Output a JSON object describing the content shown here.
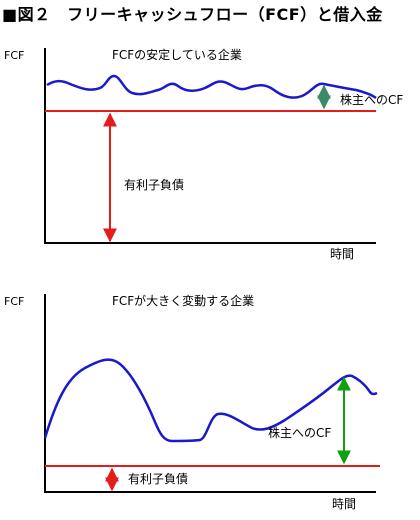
{
  "figure": {
    "title": "■図２　フリーキャッシュフロー（FCF）と借入金"
  },
  "panel_top": {
    "y_axis_label": "FCF",
    "caption": "FCFの安定している企業",
    "x_axis_label": "時間",
    "arrow_green_label": "株主へのCF",
    "arrow_red_label": "有利子負債",
    "colors": {
      "curve": "#1a1acc",
      "debt_line": "#e41b1b",
      "shareholder_arrow": "#3a8a6a",
      "debt_arrow": "#e41b1b"
    }
  },
  "panel_bottom": {
    "y_axis_label": "FCF",
    "caption": "FCFが大きく変動する企業",
    "x_axis_label": "時間",
    "arrow_green_label": "株主へのCF",
    "arrow_red_label": "有利子負債",
    "colors": {
      "curve": "#1a1acc",
      "debt_line": "#e41b1b",
      "shareholder_arrow": "#12a012",
      "debt_arrow": "#e41b1b"
    }
  }
}
